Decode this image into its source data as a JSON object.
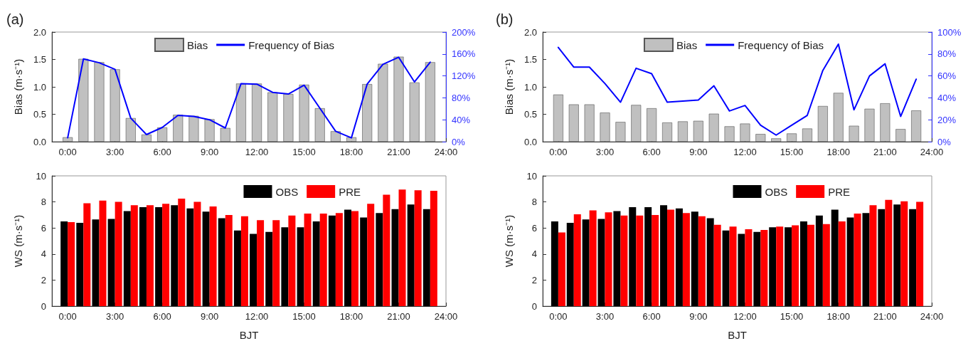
{
  "chart_data": [
    {
      "type": "bar",
      "title": "(a)",
      "ylabel": "Bias (m·s⁻¹)",
      "legend": "top",
      "marker": "none",
      "line_style": "solid",
      "grid": false,
      "x": [
        0,
        1,
        2,
        3,
        4,
        5,
        6,
        7,
        8,
        9,
        10,
        11,
        12,
        13,
        14,
        15,
        16,
        17,
        18,
        19,
        20,
        21,
        22,
        23
      ],
      "xlim": [
        -1,
        24
      ],
      "xticks": [
        {
          "value": 0,
          "label": "0:00"
        },
        {
          "value": 3,
          "label": "3:00"
        },
        {
          "value": 6,
          "label": "6:00"
        },
        {
          "value": 9,
          "label": "9:00"
        },
        {
          "value": 12,
          "label": "12:00"
        },
        {
          "value": 15,
          "label": "15:00"
        },
        {
          "value": 18,
          "label": "18:00"
        },
        {
          "value": 21,
          "label": "21:00"
        },
        {
          "value": 24,
          "label": "24:00"
        }
      ],
      "ylim": [
        0,
        2
      ],
      "yticks": [
        {
          "value": 0,
          "label": "0.0"
        },
        {
          "value": 0.5,
          "label": "0.5"
        },
        {
          "value": 1,
          "label": "1.0"
        },
        {
          "value": 1.5,
          "label": "1.5"
        },
        {
          "value": 2,
          "label": "2.0"
        }
      ],
      "y2lim": [
        0,
        200
      ],
      "y2ticks": [
        {
          "value": 0,
          "label": "0%"
        },
        {
          "value": 40,
          "label": "40%"
        },
        {
          "value": 80,
          "label": "80%"
        },
        {
          "value": 120,
          "label": "120%"
        },
        {
          "value": 160,
          "label": "160%"
        },
        {
          "value": 200,
          "label": "200%"
        }
      ],
      "series": [
        {
          "name": "Bias",
          "type": "bar",
          "color": "#c0c0c0",
          "values": [
            0.08,
            1.51,
            1.45,
            1.32,
            0.43,
            0.13,
            0.26,
            0.49,
            0.47,
            0.41,
            0.25,
            1.06,
            1.06,
            0.9,
            0.87,
            1.04,
            0.61,
            0.19,
            0.08,
            1.05,
            1.42,
            1.55,
            1.08,
            1.45
          ]
        },
        {
          "name": "Frequency of Bias",
          "type": "line",
          "axis": "y2",
          "color": "#0000ff",
          "values": [
            7,
            151,
            144,
            132,
            43,
            13,
            26,
            48,
            46,
            40,
            25,
            106,
            105,
            90,
            87,
            103,
            61,
            19,
            7,
            105,
            141,
            154,
            109,
            145
          ]
        }
      ]
    },
    {
      "type": "bar",
      "title": "(b)",
      "ylabel": "Bias (m·s⁻¹)",
      "legend": "top",
      "marker": "none",
      "line_style": "solid",
      "grid": false,
      "x": [
        0,
        1,
        2,
        3,
        4,
        5,
        6,
        7,
        8,
        9,
        10,
        11,
        12,
        13,
        14,
        15,
        16,
        17,
        18,
        19,
        20,
        21,
        22,
        23
      ],
      "xlim": [
        -1,
        24
      ],
      "xticks": [
        {
          "value": 0,
          "label": "0:00"
        },
        {
          "value": 3,
          "label": "3:00"
        },
        {
          "value": 6,
          "label": "6:00"
        },
        {
          "value": 9,
          "label": "9:00"
        },
        {
          "value": 12,
          "label": "12:00"
        },
        {
          "value": 15,
          "label": "15:00"
        },
        {
          "value": 18,
          "label": "18:00"
        },
        {
          "value": 21,
          "label": "21:00"
        },
        {
          "value": 24,
          "label": "24:00"
        }
      ],
      "ylim": [
        0,
        2
      ],
      "yticks": [
        {
          "value": 0,
          "label": "0.0"
        },
        {
          "value": 0.5,
          "label": "0.5"
        },
        {
          "value": 1,
          "label": "1.0"
        },
        {
          "value": 1.5,
          "label": "1.5"
        },
        {
          "value": 2,
          "label": "2.0"
        }
      ],
      "y2lim": [
        0,
        100
      ],
      "y2ticks": [
        {
          "value": 0,
          "label": "0%"
        },
        {
          "value": 20,
          "label": "20%"
        },
        {
          "value": 40,
          "label": "40%"
        },
        {
          "value": 60,
          "label": "60%"
        },
        {
          "value": 80,
          "label": "80%"
        },
        {
          "value": 100,
          "label": "100%"
        }
      ],
      "series": [
        {
          "name": "Bias",
          "type": "bar",
          "color": "#c0c0c0",
          "values": [
            0.86,
            0.68,
            0.68,
            0.53,
            0.36,
            0.67,
            0.61,
            0.35,
            0.37,
            0.38,
            0.51,
            0.28,
            0.33,
            0.14,
            0.06,
            0.15,
            0.24,
            0.65,
            0.89,
            0.29,
            0.6,
            0.7,
            0.23,
            0.57
          ]
        },
        {
          "name": "Frequency of Bias",
          "type": "line",
          "axis": "y2",
          "color": "#0000ff",
          "values": [
            86,
            68,
            68,
            53,
            36,
            67,
            62,
            36,
            37,
            38,
            51,
            28,
            33,
            15,
            6,
            15,
            24,
            65,
            89,
            29,
            60,
            71,
            23,
            57
          ]
        }
      ]
    },
    {
      "type": "bar",
      "xlabel": "BJT",
      "ylabel": "WS (m·s⁻¹)",
      "legend": "top right",
      "grid": false,
      "x": [
        0,
        1,
        2,
        3,
        4,
        5,
        6,
        7,
        8,
        9,
        10,
        11,
        12,
        13,
        14,
        15,
        16,
        17,
        18,
        19,
        20,
        21,
        22,
        23
      ],
      "xlim": [
        -1,
        24
      ],
      "xticks": [
        {
          "value": 0,
          "label": "0:00"
        },
        {
          "value": 3,
          "label": "3:00"
        },
        {
          "value": 6,
          "label": "6:00"
        },
        {
          "value": 9,
          "label": "9:00"
        },
        {
          "value": 12,
          "label": "12:00"
        },
        {
          "value": 15,
          "label": "15:00"
        },
        {
          "value": 18,
          "label": "18:00"
        },
        {
          "value": 21,
          "label": "21:00"
        },
        {
          "value": 24,
          "label": "24:00"
        }
      ],
      "ylim": [
        0,
        10
      ],
      "yticks": [
        0,
        2,
        4,
        6,
        8,
        10
      ],
      "series": [
        {
          "name": "OBS",
          "color": "#000000",
          "values": [
            6.5,
            6.4,
            6.65,
            6.7,
            7.3,
            7.6,
            7.6,
            7.75,
            7.5,
            7.25,
            6.75,
            5.8,
            5.55,
            5.7,
            6.05,
            6.05,
            6.5,
            6.95,
            7.4,
            6.8,
            7.15,
            7.45,
            7.8,
            7.45
          ]
        },
        {
          "name": "PRE",
          "color": "#ff0000",
          "values": [
            6.45,
            7.9,
            8.1,
            8.0,
            7.75,
            7.75,
            7.85,
            8.25,
            8.0,
            7.65,
            7.0,
            6.9,
            6.6,
            6.6,
            6.95,
            7.1,
            7.1,
            7.15,
            7.3,
            7.85,
            8.55,
            8.95,
            8.9,
            8.85
          ]
        }
      ]
    },
    {
      "type": "bar",
      "xlabel": "BJT",
      "ylabel": "WS (m·s⁻¹)",
      "legend": "top right",
      "grid": false,
      "x": [
        0,
        1,
        2,
        3,
        4,
        5,
        6,
        7,
        8,
        9,
        10,
        11,
        12,
        13,
        14,
        15,
        16,
        17,
        18,
        19,
        20,
        21,
        22,
        23
      ],
      "xlim": [
        -1,
        24
      ],
      "xticks": [
        {
          "value": 0,
          "label": "0:00"
        },
        {
          "value": 3,
          "label": "3:00"
        },
        {
          "value": 6,
          "label": "6:00"
        },
        {
          "value": 9,
          "label": "9:00"
        },
        {
          "value": 12,
          "label": "12:00"
        },
        {
          "value": 15,
          "label": "15:00"
        },
        {
          "value": 18,
          "label": "18:00"
        },
        {
          "value": 21,
          "label": "21:00"
        },
        {
          "value": 24,
          "label": "24:00"
        }
      ],
      "ylim": [
        0,
        10
      ],
      "yticks": [
        0,
        2,
        4,
        6,
        8,
        10
      ],
      "series": [
        {
          "name": "OBS",
          "color": "#000000",
          "values": [
            6.5,
            6.4,
            6.65,
            6.7,
            7.3,
            7.6,
            7.6,
            7.75,
            7.5,
            7.25,
            6.75,
            5.8,
            5.55,
            5.7,
            6.05,
            6.05,
            6.5,
            6.95,
            7.4,
            6.8,
            7.15,
            7.45,
            7.8,
            7.45
          ]
        },
        {
          "name": "PRE",
          "color": "#ff0000",
          "values": [
            5.65,
            7.05,
            7.35,
            7.2,
            6.95,
            6.95,
            7.0,
            7.4,
            7.15,
            6.9,
            6.25,
            6.1,
            5.9,
            5.85,
            6.1,
            6.2,
            6.25,
            6.3,
            6.5,
            7.1,
            7.75,
            8.15,
            8.05,
            8.0
          ]
        }
      ]
    }
  ]
}
